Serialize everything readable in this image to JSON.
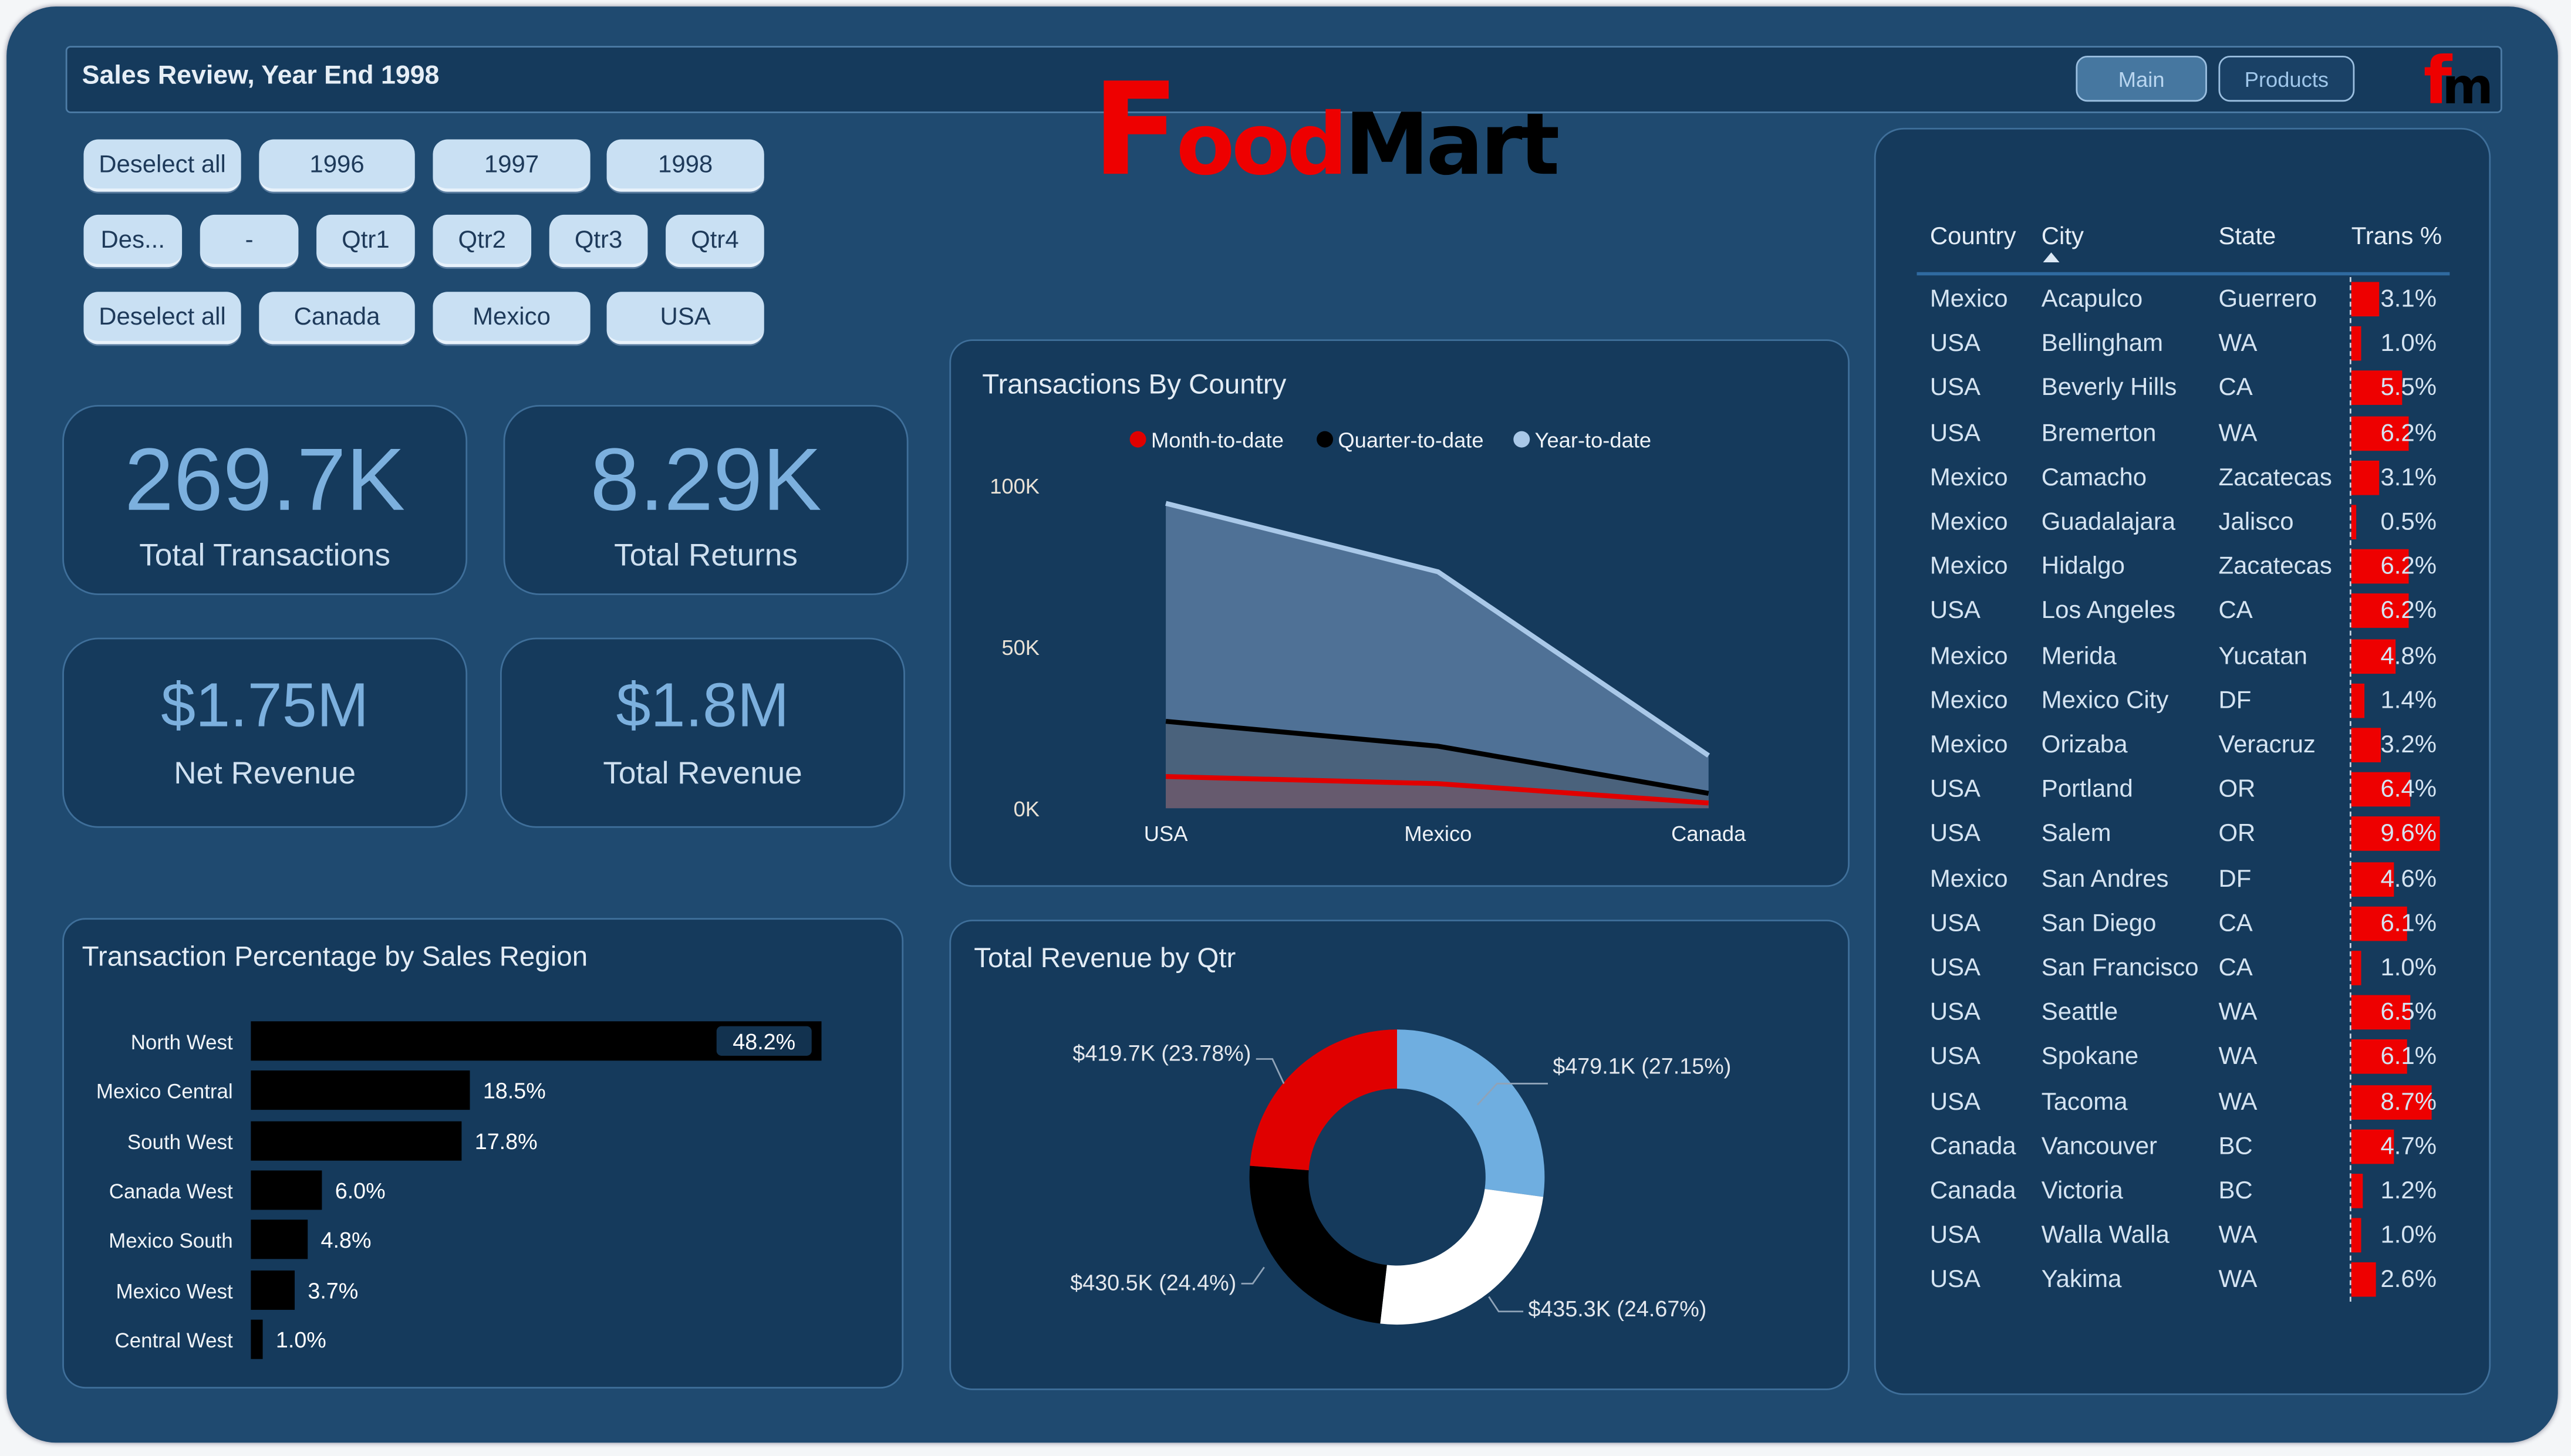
{
  "header": {
    "title": "Sales Review, Year End 1998",
    "nav": [
      {
        "label": "Main",
        "active": true
      },
      {
        "label": "Products",
        "active": false
      }
    ]
  },
  "logo": {
    "text": "FoodMart",
    "f": "F",
    "ood": "ood",
    "mart": "Mart",
    "mini": "fm",
    "red": "#ee0000",
    "black": "#000000"
  },
  "slicers": {
    "year": [
      "Deselect all",
      "1996",
      "1997",
      "1998"
    ],
    "quarter": [
      "Des...",
      "-",
      "Qtr1",
      "Qtr2",
      "Qtr3",
      "Qtr4"
    ],
    "country": [
      "Deselect all",
      "Canada",
      "Mexico",
      "USA"
    ]
  },
  "kpis": [
    {
      "value": "269.7K",
      "label": "Total Transactions"
    },
    {
      "value": "8.29K",
      "label": "Total Returns"
    },
    {
      "value": "$1.75M",
      "label": "Net Revenue"
    },
    {
      "value": "$1.8M",
      "label": "Total Revenue"
    }
  ],
  "chart_data": [
    {
      "type": "area",
      "title": "Transactions By Country",
      "categories": [
        "USA",
        "Mexico",
        "Canada"
      ],
      "yticks": [
        "0K",
        "50K",
        "100K"
      ],
      "ylim": [
        0,
        100000
      ],
      "legend_position": "top",
      "series": [
        {
          "name": "Month-to-date",
          "color": "#e00000",
          "values": [
            9800,
            7600,
            1600
          ]
        },
        {
          "name": "Quarter-to-date",
          "color": "#000000",
          "values": [
            26900,
            19200,
            4600
          ]
        },
        {
          "name": "Year-to-date",
          "color": "#a9c8e8",
          "values": [
            94400,
            73200,
            16300
          ]
        }
      ]
    },
    {
      "type": "bar",
      "orientation": "horizontal",
      "title": "Transaction Percentage by Sales Region",
      "categories": [
        "North West",
        "Mexico Central",
        "South West",
        "Canada West",
        "Mexico South",
        "Mexico West",
        "Central West"
      ],
      "values": [
        48.2,
        18.5,
        17.8,
        6.0,
        4.8,
        3.7,
        1.0
      ],
      "labels": [
        "48.2%",
        "18.5%",
        "17.8%",
        "6.0%",
        "4.8%",
        "3.7%",
        "1.0%"
      ],
      "color": "#000000"
    },
    {
      "type": "pie",
      "donut": true,
      "title": "Total Revenue by Qtr",
      "values": [
        479.1,
        435.3,
        430.5,
        419.7
      ],
      "labels": [
        "$479.1K (27.15%)",
        "$435.3K (24.67%)",
        "$430.5K (24.4%)",
        "$419.7K (23.78%)"
      ],
      "colors": [
        "#6faee0",
        "#ffffff",
        "#000000",
        "#e00000"
      ]
    }
  ],
  "table": {
    "columns": [
      "Country",
      "City",
      "State",
      "Trans %"
    ],
    "sorted_by": "City",
    "sort_direction": "ascending",
    "bar_color": "#ee0000",
    "rows": [
      [
        "Mexico",
        "Acapulco",
        "Guerrero",
        "3.1%"
      ],
      [
        "USA",
        "Bellingham",
        "WA",
        "1.0%"
      ],
      [
        "USA",
        "Beverly Hills",
        "CA",
        "5.5%"
      ],
      [
        "USA",
        "Bremerton",
        "WA",
        "6.2%"
      ],
      [
        "Mexico",
        "Camacho",
        "Zacatecas",
        "3.1%"
      ],
      [
        "Mexico",
        "Guadalajara",
        "Jalisco",
        "0.5%"
      ],
      [
        "Mexico",
        "Hidalgo",
        "Zacatecas",
        "6.2%"
      ],
      [
        "USA",
        "Los Angeles",
        "CA",
        "6.2%"
      ],
      [
        "Mexico",
        "Merida",
        "Yucatan",
        "4.8%"
      ],
      [
        "Mexico",
        "Mexico City",
        "DF",
        "1.4%"
      ],
      [
        "Mexico",
        "Orizaba",
        "Veracruz",
        "3.2%"
      ],
      [
        "USA",
        "Portland",
        "OR",
        "6.4%"
      ],
      [
        "USA",
        "Salem",
        "OR",
        "9.6%"
      ],
      [
        "Mexico",
        "San Andres",
        "DF",
        "4.6%"
      ],
      [
        "USA",
        "San Diego",
        "CA",
        "6.1%"
      ],
      [
        "USA",
        "San Francisco",
        "CA",
        "1.0%"
      ],
      [
        "USA",
        "Seattle",
        "WA",
        "6.5%"
      ],
      [
        "USA",
        "Spokane",
        "WA",
        "6.1%"
      ],
      [
        "USA",
        "Tacoma",
        "WA",
        "8.7%"
      ],
      [
        "Canada",
        "Vancouver",
        "BC",
        "4.7%"
      ],
      [
        "Canada",
        "Victoria",
        "BC",
        "1.2%"
      ],
      [
        "USA",
        "Walla Walla",
        "WA",
        "1.0%"
      ],
      [
        "USA",
        "Yakima",
        "WA",
        "2.6%"
      ]
    ]
  }
}
